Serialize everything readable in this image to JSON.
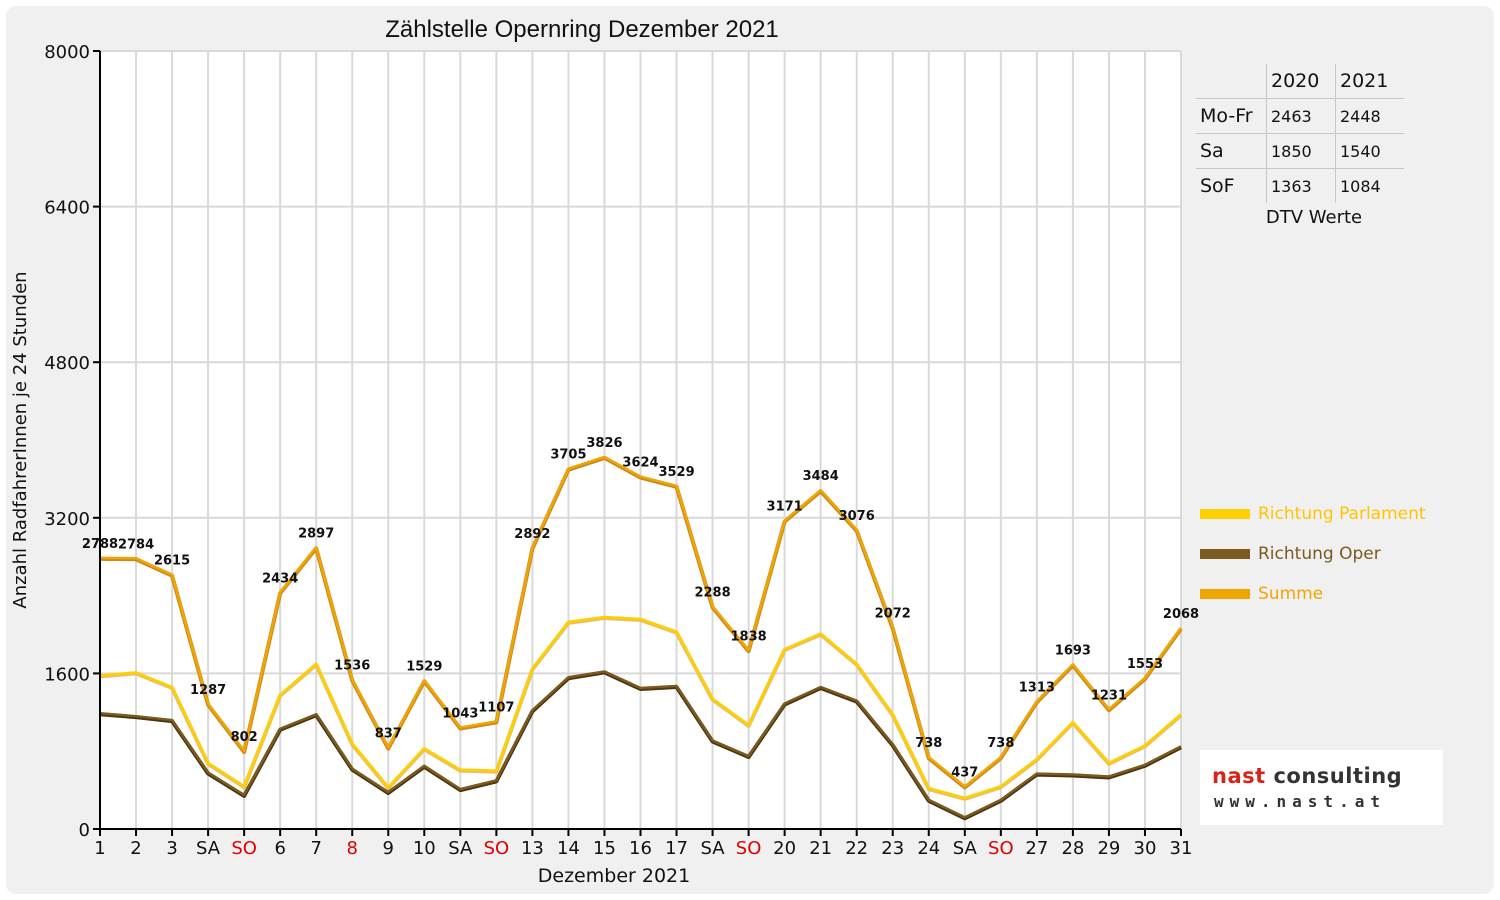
{
  "chart_data": {
    "type": "line",
    "title": "Zählstelle Opernring Dezember 2021",
    "xlabel": "Dezember 2021",
    "ylabel": "Anzahl RadfahrerInnen je 24 Stunden",
    "ylim": [
      0,
      8000
    ],
    "yticks": [
      0,
      1600,
      3200,
      4800,
      6400,
      8000
    ],
    "grid": true,
    "categories": [
      "1",
      "2",
      "3",
      "SA",
      "SO",
      "6",
      "7",
      "8",
      "9",
      "10",
      "SA",
      "SO",
      "13",
      "14",
      "15",
      "16",
      "17",
      "SA",
      "SO",
      "20",
      "21",
      "22",
      "23",
      "24",
      "SA",
      "SO",
      "27",
      "28",
      "29",
      "30",
      "31"
    ],
    "red_categories": [
      4,
      7,
      11,
      18,
      25
    ],
    "series": [
      {
        "name": "Richtung Parlament",
        "color": "#ffd000",
        "values": [
          1580,
          1610,
          1460,
          680,
          440,
          1380,
          1700,
          880,
          430,
          830,
          610,
          600,
          1650,
          2130,
          2180,
          2160,
          2030,
          1340,
          1070,
          1850,
          2010,
          1700,
          1180,
          420,
          320,
          440,
          720,
          1100,
          680,
          860,
          1180
        ]
      },
      {
        "name": "Richtung Oper",
        "color": "#7a5a1e",
        "values": [
          1190,
          1160,
          1120,
          580,
          350,
          1030,
          1180,
          620,
          380,
          650,
          410,
          500,
          1220,
          1560,
          1620,
          1450,
          1470,
          910,
          750,
          1290,
          1460,
          1320,
          870,
          300,
          120,
          300,
          570,
          560,
          540,
          660,
          850
        ]
      },
      {
        "name": "Summe",
        "color": "#f0a500",
        "values": [
          2788,
          2784,
          2615,
          1287,
          802,
          2434,
          2897,
          1536,
          837,
          1529,
          1043,
          1107,
          2892,
          3705,
          3826,
          3624,
          3529,
          2288,
          1838,
          3171,
          3484,
          3076,
          2072,
          738,
          437,
          738,
          1313,
          1693,
          1231,
          1553,
          2068
        ]
      }
    ],
    "data_labels": [
      "2788",
      "2784",
      "2615",
      "1287",
      "802",
      "2434",
      "2897",
      "1536",
      "837",
      "1529",
      "1043",
      "1107",
      "2892",
      "3705",
      "3826",
      "3624",
      "3529",
      "2288",
      "1838",
      "3171",
      "3484",
      "3076",
      "2072",
      "738",
      "437",
      "738",
      "1313",
      "1693",
      "1231",
      "1553",
      "2068"
    ]
  },
  "dtv_table": {
    "headers": [
      "",
      "2020",
      "2021"
    ],
    "rows": [
      {
        "label": "Mo-Fr",
        "v2020": "2463",
        "v2021": "2448"
      },
      {
        "label": "Sa",
        "v2020": "1850",
        "v2021": "1540"
      },
      {
        "label": "SoF",
        "v2020": "1363",
        "v2021": "1084"
      }
    ],
    "caption": "DTV Werte"
  },
  "logo": {
    "brand": "nast",
    "suffix": "consulting",
    "url": "www.nast.at"
  },
  "colors": {
    "weekend_label": "#e00000",
    "axis": "#000000",
    "grid": "#d9d9d9"
  }
}
